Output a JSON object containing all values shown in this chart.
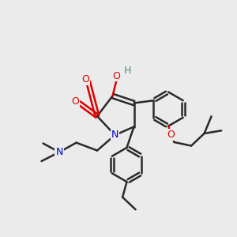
{
  "bg_color": "#ebebeb",
  "bond_color": "#2a2a2a",
  "bond_width": 1.8,
  "colors": {
    "O": "#dd0000",
    "N": "#0000cc",
    "H_label": "#4a8888",
    "C": "#2a2a2a"
  }
}
